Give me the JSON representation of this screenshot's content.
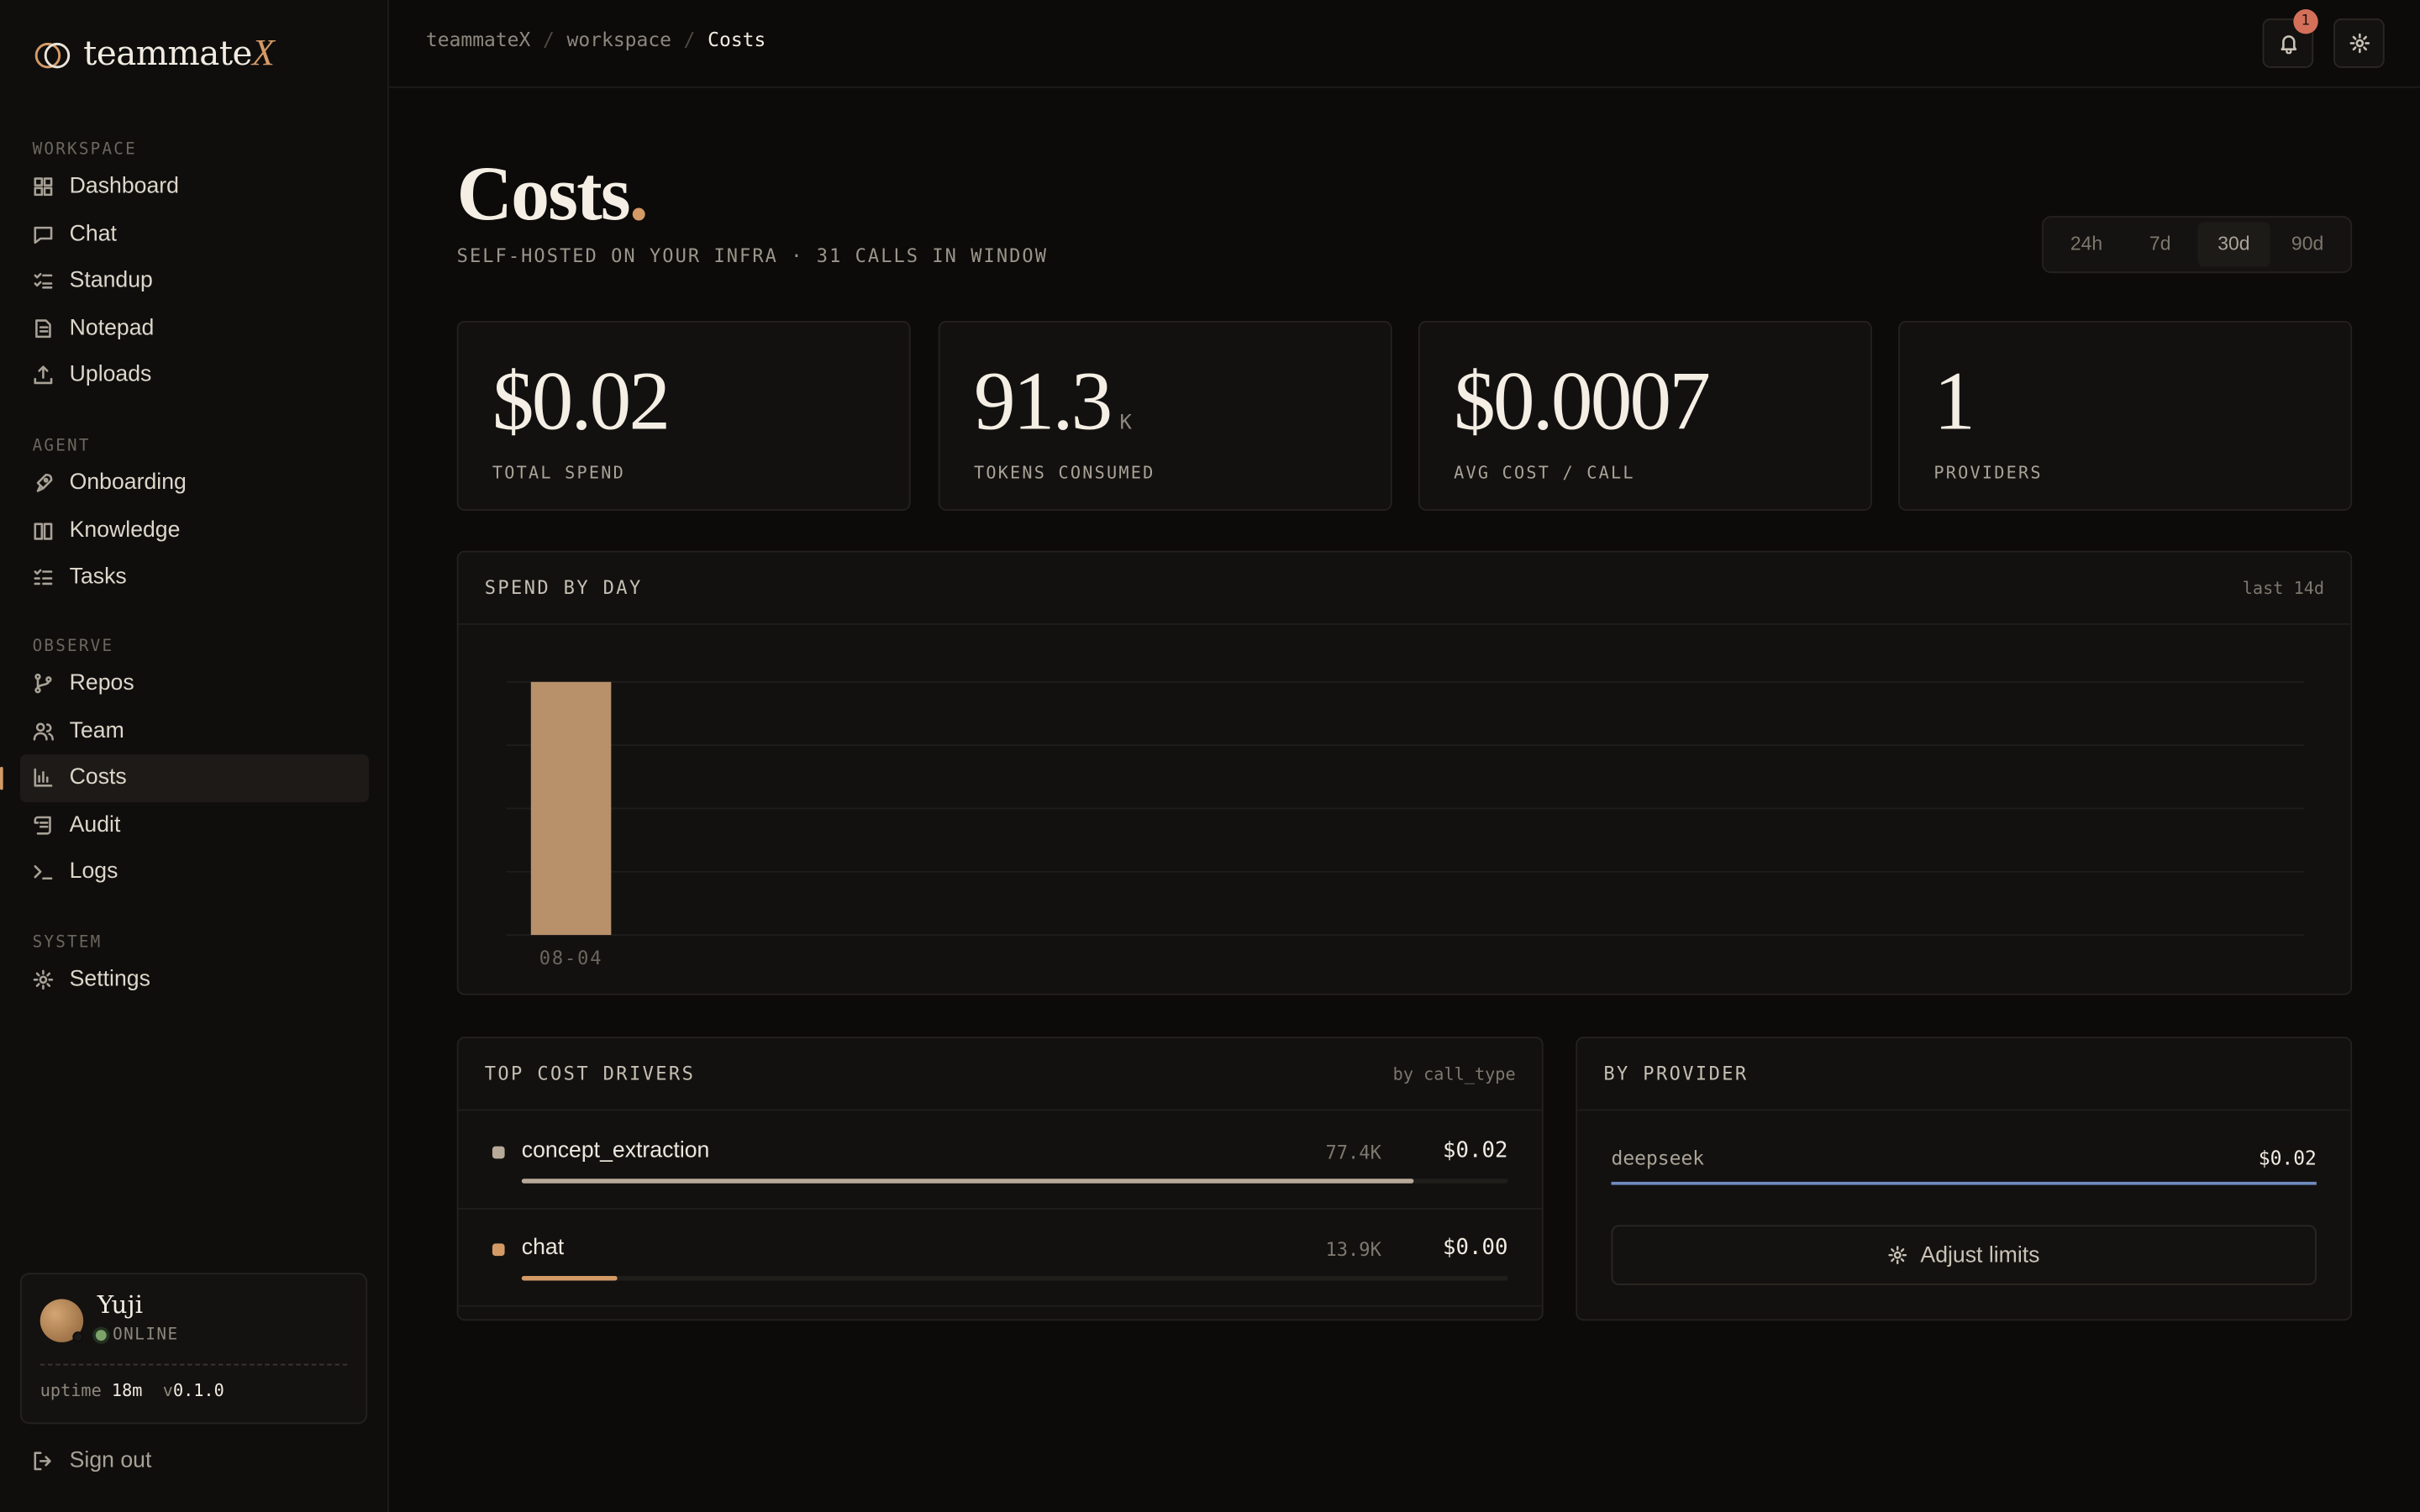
{
  "app": {
    "logo_text": "teammate",
    "logo_accent": "X"
  },
  "sidebar": {
    "sections": [
      {
        "label": "WORKSPACE",
        "items": [
          {
            "label": "Dashboard",
            "icon": "grid-icon"
          },
          {
            "label": "Chat",
            "icon": "message-icon"
          },
          {
            "label": "Standup",
            "icon": "checklist-icon"
          },
          {
            "label": "Notepad",
            "icon": "notepad-icon"
          },
          {
            "label": "Uploads",
            "icon": "upload-icon"
          }
        ]
      },
      {
        "label": "AGENT",
        "items": [
          {
            "label": "Onboarding",
            "icon": "rocket-icon"
          },
          {
            "label": "Knowledge",
            "icon": "book-icon"
          },
          {
            "label": "Tasks",
            "icon": "list-icon"
          }
        ]
      },
      {
        "label": "OBSERVE",
        "items": [
          {
            "label": "Repos",
            "icon": "branch-icon"
          },
          {
            "label": "Team",
            "icon": "users-icon"
          },
          {
            "label": "Costs",
            "icon": "bar-chart-icon"
          },
          {
            "label": "Audit",
            "icon": "scroll-icon"
          },
          {
            "label": "Logs",
            "icon": "terminal-icon"
          }
        ]
      },
      {
        "label": "SYSTEM",
        "items": [
          {
            "label": "Settings",
            "icon": "gear-icon"
          }
        ]
      }
    ],
    "active_item": "Costs",
    "user": {
      "name": "Yuji",
      "status": "ONLINE",
      "uptime_label": "uptime",
      "uptime_value": "18m",
      "version_prefix": "v",
      "version": "0.1.0"
    },
    "signout_label": "Sign out"
  },
  "header": {
    "breadcrumb": [
      "teammateX",
      "workspace",
      "Costs"
    ],
    "notification_count": "1"
  },
  "page": {
    "title": "Costs",
    "title_dot": ".",
    "subtitle": "SELF-HOSTED ON YOUR INFRA · 31 CALLS IN WINDOW",
    "ranges": [
      "24h",
      "7d",
      "30d",
      "90d"
    ],
    "active_range": "30d"
  },
  "stats": [
    {
      "value": "$0.02",
      "unit": "",
      "label": "TOTAL SPEND"
    },
    {
      "value": "91.3",
      "unit": "K",
      "label": "TOKENS CONSUMED"
    },
    {
      "value": "$0.0007",
      "unit": "",
      "label": "AVG COST / CALL"
    },
    {
      "value": "1",
      "unit": "",
      "label": "PROVIDERS"
    }
  ],
  "spend_panel": {
    "title": "SPEND BY DAY",
    "meta": "last 14d"
  },
  "chart_data": {
    "type": "bar",
    "categories": [
      "08-04"
    ],
    "values": [
      0.02
    ],
    "ylim": [
      0,
      0.02
    ],
    "grid": true,
    "bar_color": "#b8906a"
  },
  "drivers_panel": {
    "title": "TOP COST DRIVERS",
    "meta": "by call_type",
    "rows": [
      {
        "name": "concept_extraction",
        "tokens": "77.4K",
        "cost": "$0.02",
        "share": 0.904,
        "color": "#b7aa98"
      },
      {
        "name": "chat",
        "tokens": "13.9K",
        "cost": "$0.00",
        "share": 0.097,
        "color": "#d49a66"
      }
    ]
  },
  "provider_panel": {
    "title": "BY PROVIDER",
    "rows": [
      {
        "name": "deepseek",
        "cost": "$0.02",
        "share": 1.0
      }
    ],
    "adjust_label": "Adjust limits"
  }
}
